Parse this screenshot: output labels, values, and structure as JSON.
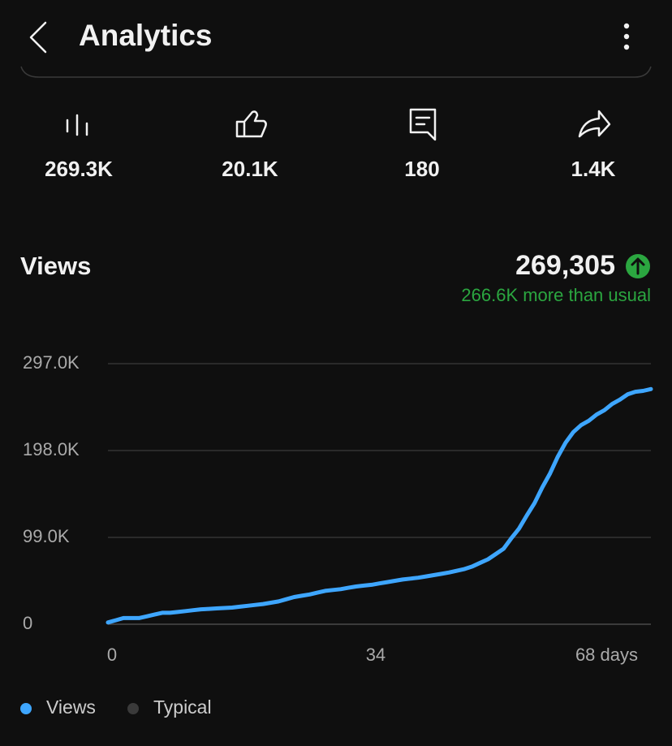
{
  "header": {
    "title": "Analytics"
  },
  "stats": [
    "269.3K",
    "20.1K",
    "180",
    "1.4K"
  ],
  "summary": {
    "label": "Views",
    "total": "269,305",
    "note": "266.6K more than usual"
  },
  "chart_data": {
    "type": "line",
    "x": [
      0,
      1,
      2,
      3,
      4,
      5,
      6,
      7,
      8,
      9,
      10,
      11,
      12,
      13,
      14,
      15,
      16,
      17,
      18,
      19,
      20,
      21,
      22,
      23,
      24,
      25,
      26,
      27,
      28,
      29,
      30,
      31,
      32,
      33,
      34,
      35,
      36,
      37,
      38,
      39,
      40,
      41,
      42,
      43,
      44,
      45,
      46,
      47,
      48,
      49,
      50,
      51,
      52,
      53,
      54,
      55,
      56,
      57,
      58,
      59,
      60,
      61,
      62,
      63,
      64,
      65,
      66,
      67,
      68,
      69,
      70
    ],
    "values": [
      2000,
      4500,
      7000,
      7000,
      7000,
      9000,
      11000,
      13000,
      13000,
      14000,
      15000,
      16000,
      17000,
      17500,
      18000,
      18500,
      19000,
      20000,
      21000,
      22000,
      23000,
      24500,
      26000,
      28500,
      31000,
      32500,
      34000,
      36000,
      38000,
      39000,
      40000,
      41500,
      43000,
      44000,
      45000,
      46500,
      48000,
      49500,
      51000,
      52000,
      53000,
      54500,
      56000,
      57500,
      59000,
      61000,
      63000,
      66000,
      70000,
      74000,
      80000,
      86000,
      98000,
      109000,
      124000,
      138000,
      156000,
      172000,
      191000,
      207000,
      219000,
      227000,
      232000,
      239000,
      244000,
      251000,
      256000,
      262000,
      265000,
      266000,
      268000
    ],
    "color": "#3ea6ff",
    "xlim": [
      0,
      70
    ],
    "xticks": [
      0,
      34,
      {
        "value": 68,
        "label": "68 days"
      }
    ],
    "ylim": [
      0,
      297000
    ],
    "yticks": [
      0,
      {
        "value": 99000,
        "label": "99.0K"
      },
      {
        "value": 198000,
        "label": "198.0K"
      },
      {
        "value": 297000,
        "label": "297.0K"
      }
    ],
    "grid": true,
    "legend": [
      {
        "name": "Views",
        "color": "#3ea6ff"
      },
      {
        "name": "Typical",
        "color": "#3a3a3a"
      }
    ]
  }
}
